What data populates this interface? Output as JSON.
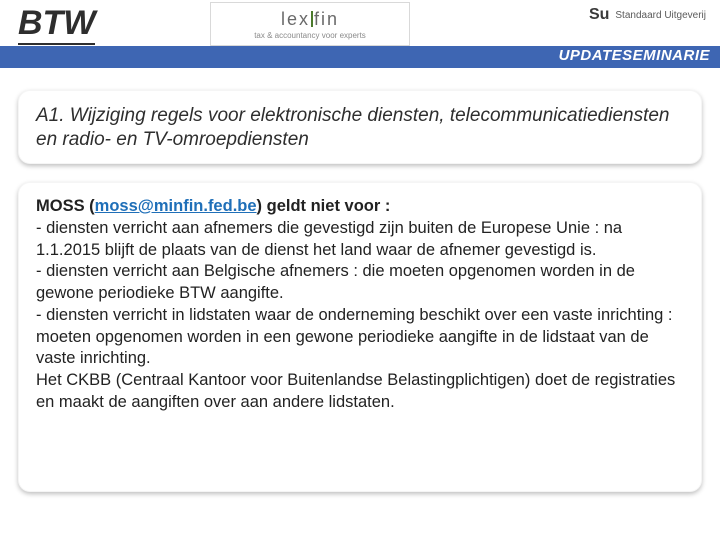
{
  "header": {
    "title": "BTW",
    "subtitle": "UPDATESEMINARIE",
    "logo_center": {
      "brand_left": "lex",
      "brand_right": "fin",
      "tagline": "tax & accountancy voor experts"
    },
    "logo_right": {
      "mark": "Su",
      "publisher": "Standaard Uitgeverij"
    }
  },
  "section": {
    "heading": "A1. Wijziging regels voor elektronische diensten, telecommunicatiediensten en radio- en TV-omroepdiensten"
  },
  "content": {
    "lead_prefix": "MOSS (",
    "email": "moss@minfin.fed.be",
    "lead_suffix": ") geldt niet voor :",
    "line1": "- diensten verricht aan afnemers die gevestigd zijn buiten de Europese Unie : na 1.1.2015 blijft de plaats van de dienst het land waar de afnemer gevestigd is.",
    "line2": "- diensten verricht aan Belgische afnemers : die moeten opgenomen worden in de gewone periodieke BTW aangifte.",
    "line3": "- diensten verricht in lidstaten waar de onderneming beschikt over een vaste inrichting : moeten opgenomen worden in een gewone periodieke aangifte in de lidstaat van de vaste inrichting.",
    "line4": "Het CKBB (Centraal Kantoor voor Buitenlandse Belastingplichtigen) doet de registraties en maakt de aangiften over aan andere lidstaten."
  },
  "colors": {
    "bluebar": "#3e66b3",
    "link": "#1f6fb8",
    "text": "#2e2e2e"
  }
}
